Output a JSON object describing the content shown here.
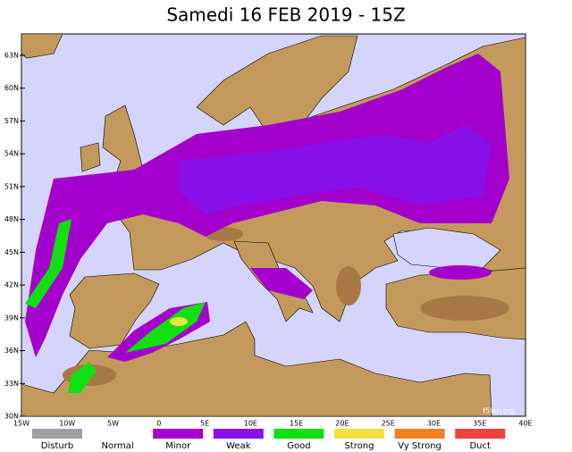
{
  "title": "Samedi 16 FEB 2019 - 15Z",
  "latitude_labels": [
    "63N",
    "60N",
    "57N",
    "54N",
    "51N",
    "48N",
    "45N",
    "42N",
    "39N",
    "36N",
    "33N",
    "30N"
  ],
  "longitude_labels": [
    "15W",
    "10W",
    "5W",
    "0",
    "5E",
    "10E",
    "15E",
    "20E",
    "25E",
    "30E",
    "35E",
    "40E"
  ],
  "legend": [
    {
      "label": "Disturb",
      "color": "#a0a0a0"
    },
    {
      "label": "Normal",
      "color": "#ffffff"
    },
    {
      "label": "Minor",
      "color": "#a400cc"
    },
    {
      "label": "Weak",
      "color": "#8a10e8"
    },
    {
      "label": "Good",
      "color": "#10e010"
    },
    {
      "label": "Strong",
      "color": "#f0e040"
    },
    {
      "label": "Vy Strong",
      "color": "#f08020"
    },
    {
      "label": "Duct",
      "color": "#f04040"
    }
  ],
  "watermark": "f5len.org"
}
